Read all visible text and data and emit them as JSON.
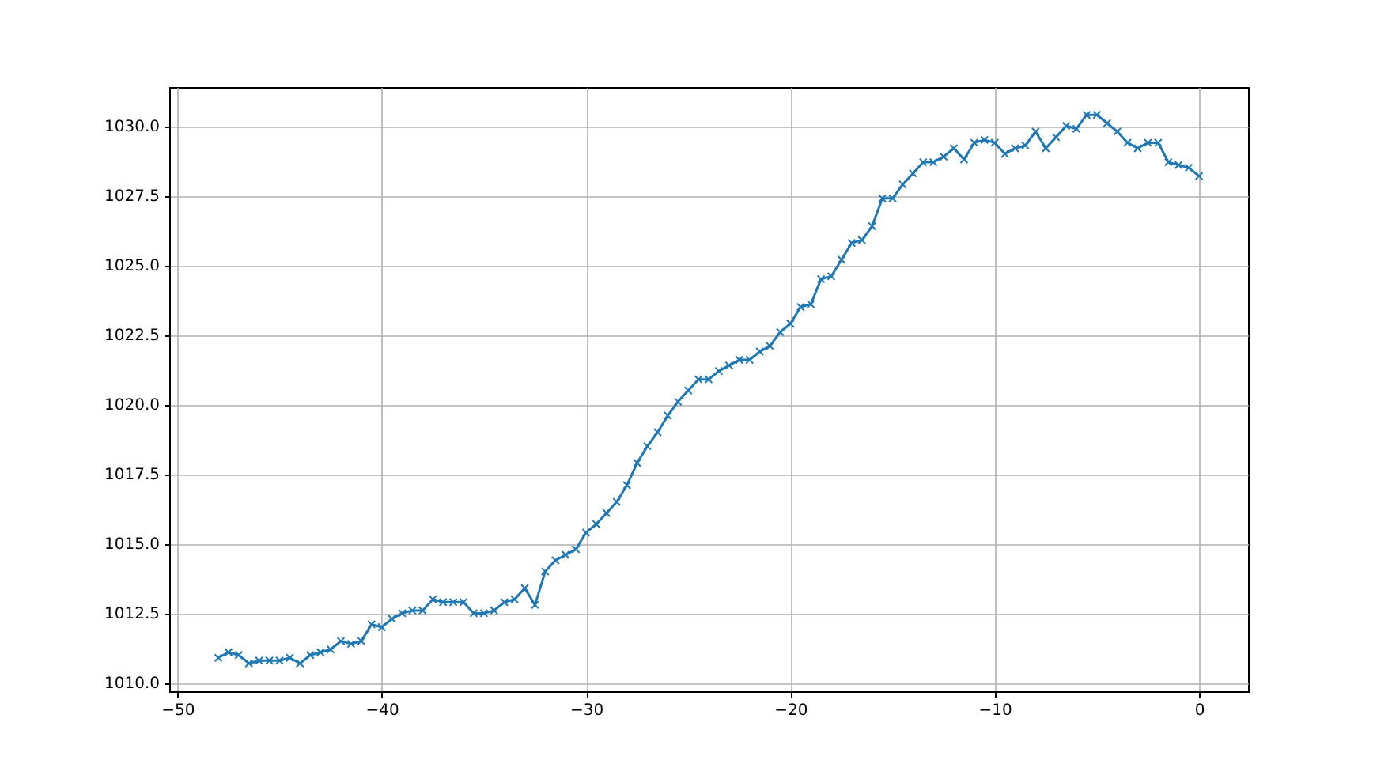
{
  "chart_data": {
    "type": "line",
    "marker": "cross",
    "grid": true,
    "xlim": [
      -50.4,
      2.4
    ],
    "ylim": [
      1009.7,
      1031.4
    ],
    "xticks": [
      {
        "value": -50,
        "label": "−50"
      },
      {
        "value": -40,
        "label": "−40"
      },
      {
        "value": -30,
        "label": "−30"
      },
      {
        "value": -20,
        "label": "−20"
      },
      {
        "value": -10,
        "label": "−10"
      },
      0
    ],
    "yticks": [
      {
        "value": 1010,
        "label": "1010.0"
      },
      {
        "value": 1012.5,
        "label": "1012.5"
      },
      {
        "value": 1015,
        "label": "1015.0"
      },
      {
        "value": 1017.5,
        "label": "1017.5"
      },
      {
        "value": 1020,
        "label": "1020.0"
      },
      {
        "value": 1022.5,
        "label": "1022.5"
      },
      {
        "value": 1025,
        "label": "1025.0"
      },
      {
        "value": 1027.5,
        "label": "1027.5"
      },
      {
        "value": 1030,
        "label": "1030.0"
      }
    ],
    "x": [
      -48,
      -47.5,
      -47,
      -46.5,
      -46,
      -45.5,
      -45,
      -44.5,
      -44,
      -43.5,
      -43,
      -42.5,
      -42,
      -41.5,
      -41,
      -40.5,
      -40,
      -39.5,
      -39,
      -38.5,
      -38,
      -37.5,
      -37,
      -36.5,
      -36,
      -35.5,
      -35,
      -34.5,
      -34,
      -33.5,
      -33,
      -32.5,
      -32,
      -31.5,
      -31,
      -30.5,
      -30,
      -29.5,
      -29,
      -28.5,
      -28,
      -27.5,
      -27,
      -26.5,
      -26,
      -25.5,
      -25,
      -24.5,
      -24,
      -23.5,
      -23,
      -22.5,
      -22,
      -21.5,
      -21,
      -20.5,
      -20,
      -19.5,
      -19,
      -18.5,
      -18,
      -17.5,
      -17,
      -16.5,
      -16,
      -15.5,
      -15,
      -14.5,
      -14,
      -13.5,
      -13,
      -12.5,
      -12,
      -11.5,
      -11,
      -10.5,
      -10,
      -9.5,
      -9,
      -8.5,
      -8,
      -7.5,
      -7,
      -6.5,
      -6,
      -5.5,
      -5,
      -4.5,
      -4,
      -3.5,
      -3,
      -2.5,
      -2,
      -1.5,
      -1,
      -0.5,
      0
    ],
    "series": [
      {
        "color": "#1f77b4",
        "values": [
          1010.9,
          1011.1,
          1011.0,
          1010.7,
          1010.8,
          1010.8,
          1010.8,
          1010.9,
          1010.7,
          1011.0,
          1011.1,
          1011.2,
          1011.5,
          1011.4,
          1011.5,
          1012.1,
          1012.0,
          1012.3,
          1012.5,
          1012.6,
          1012.6,
          1013.0,
          1012.9,
          1012.9,
          1012.9,
          1012.5,
          1012.5,
          1012.6,
          1012.9,
          1013.0,
          1013.4,
          1012.8,
          1014.0,
          1014.4,
          1014.6,
          1014.8,
          1015.4,
          1015.7,
          1016.1,
          1016.5,
          1017.1,
          1017.9,
          1018.5,
          1019.0,
          1019.6,
          1020.1,
          1020.5,
          1020.9,
          1020.9,
          1021.2,
          1021.4,
          1021.6,
          1021.6,
          1021.9,
          1022.1,
          1022.6,
          1022.9,
          1023.5,
          1023.6,
          1024.5,
          1024.6,
          1025.2,
          1025.8,
          1025.9,
          1026.4,
          1027.4,
          1027.4,
          1027.9,
          1028.3,
          1028.7,
          1028.7,
          1028.9,
          1029.2,
          1028.8,
          1029.4,
          1029.5,
          1029.4,
          1029.0,
          1029.2,
          1029.3,
          1029.8,
          1029.2,
          1029.6,
          1030.0,
          1029.9,
          1030.4,
          1030.4,
          1030.1,
          1029.8,
          1029.4,
          1029.2,
          1029.4,
          1029.4,
          1028.7,
          1028.6,
          1028.5,
          1028.2
        ]
      }
    ]
  }
}
